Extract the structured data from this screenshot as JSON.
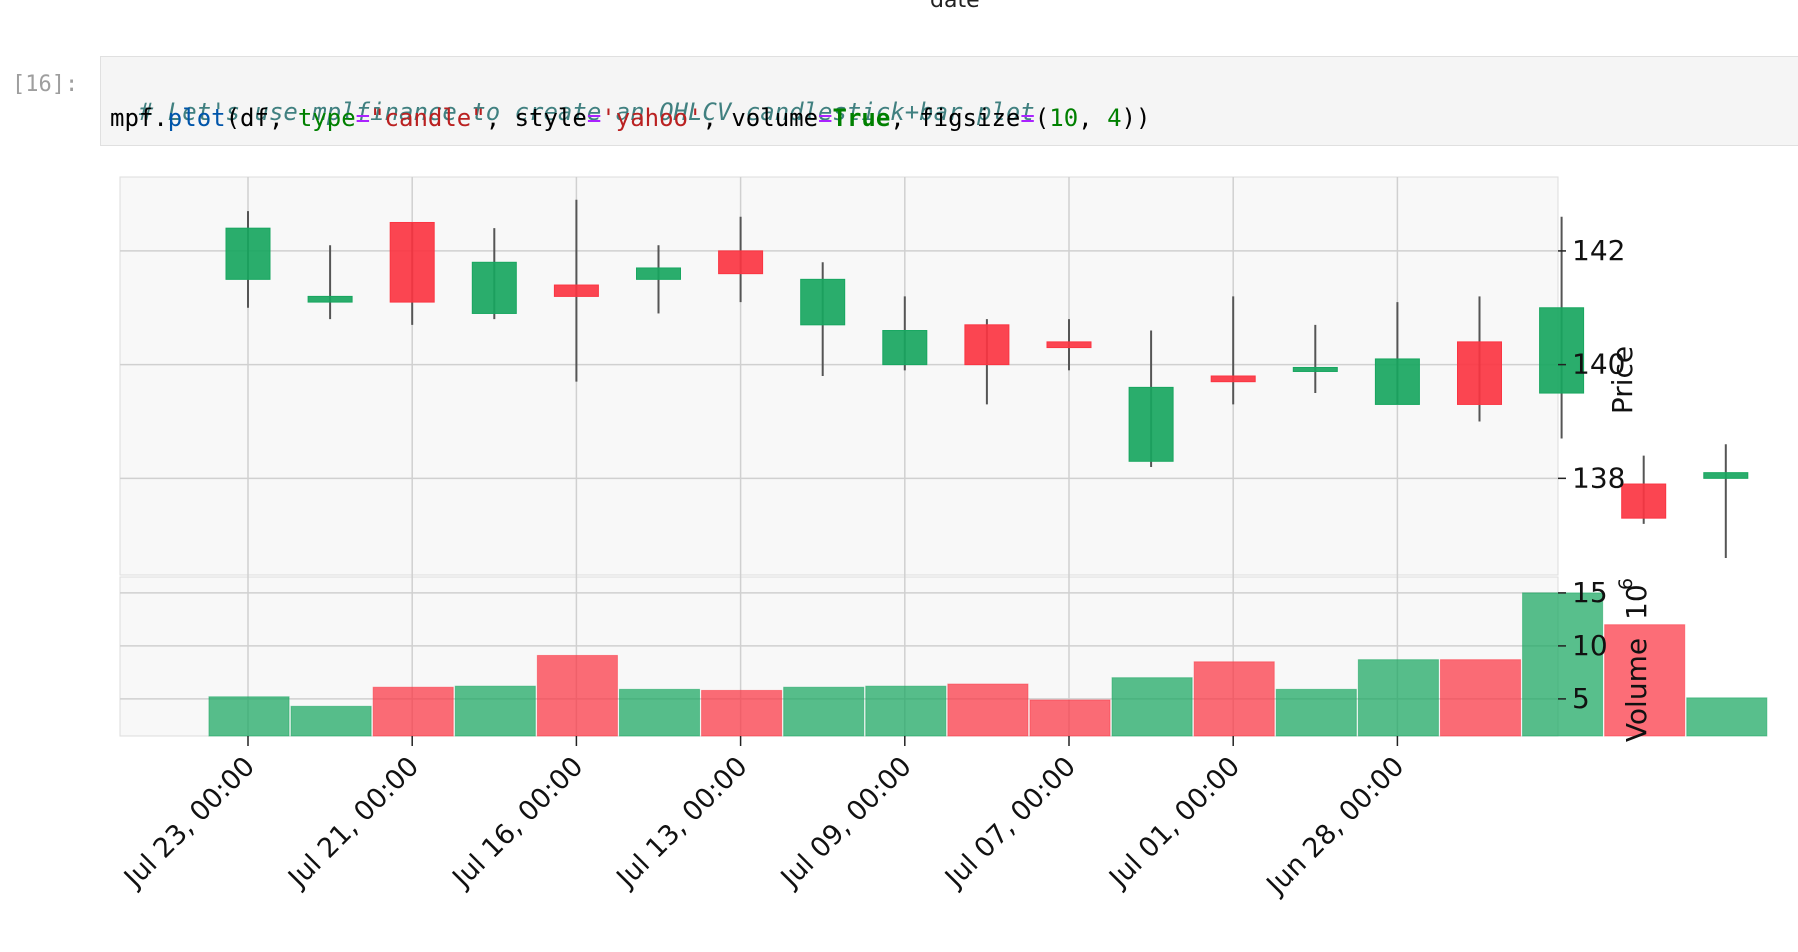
{
  "top_label": "date",
  "cell": {
    "prompt": "[16]:",
    "line1_comment": "# Let's use mplfinance to create an OHLCV candlestick+bar plot",
    "line2": {
      "t1": "mpf.",
      "fn": "plot",
      "t2": "(df, ",
      "k1": "type",
      "eq1": "=",
      "s1": "\"candle\"",
      "t3": ", style",
      "eq2": "=",
      "s2": "'yahoo'",
      "t4": ", volume",
      "eq3": "=",
      "b1": "True",
      "t5": ", figsize",
      "eq4": "=",
      "t6": "(",
      "n1": "10",
      "t7": ", ",
      "n2": "4",
      "t8": "))"
    }
  },
  "chart_data": {
    "type": "candlestick",
    "ylabel": "Price",
    "volume_label": "Volume",
    "volume_exponent": "10",
    "volume_exponent_power": "6",
    "price_ticks": [
      "142",
      "140",
      "138"
    ],
    "price_tick_values": [
      142,
      140,
      138
    ],
    "price_ylim": [
      136.3,
      143.3
    ],
    "volume_ticks": [
      "15",
      "10",
      "5"
    ],
    "volume_tick_values": [
      15,
      10,
      5
    ],
    "volume_ylim": [
      1.5,
      16.5
    ],
    "x_tick_labels": [
      "Jul 23, 00:00",
      "Jul 21, 00:00",
      "Jul 16, 00:00",
      "Jul 13, 00:00",
      "Jul 09, 00:00",
      "Jul 07, 00:00",
      "Jul 01, 00:00",
      "Jun 28, 00:00"
    ],
    "x_tick_index": [
      0,
      2,
      4,
      6,
      8,
      10,
      12,
      14
    ],
    "colors": {
      "up": "#18a660",
      "down": "#fb3542",
      "wick": "#555555",
      "grid": "#d0d0d0",
      "panel": "#f8f8f8"
    },
    "candles": [
      {
        "open": 141.5,
        "high": 142.7,
        "low": 141.0,
        "close": 142.4,
        "volume": 5.2
      },
      {
        "open": 141.1,
        "high": 142.1,
        "low": 140.8,
        "close": 141.2,
        "volume": 4.3
      },
      {
        "open": 142.5,
        "high": 142.5,
        "low": 140.7,
        "close": 141.1,
        "volume": 6.1
      },
      {
        "open": 140.9,
        "high": 142.4,
        "low": 140.8,
        "close": 141.8,
        "volume": 6.2
      },
      {
        "open": 141.4,
        "high": 142.9,
        "low": 139.7,
        "close": 141.2,
        "volume": 9.1
      },
      {
        "open": 141.5,
        "high": 142.1,
        "low": 140.9,
        "close": 141.7,
        "volume": 5.9
      },
      {
        "open": 142.0,
        "high": 142.6,
        "low": 141.1,
        "close": 141.6,
        "volume": 5.8
      },
      {
        "open": 140.7,
        "high": 141.8,
        "low": 139.8,
        "close": 141.5,
        "volume": 6.1
      },
      {
        "open": 140.0,
        "high": 141.2,
        "low": 139.9,
        "close": 140.6,
        "volume": 6.2
      },
      {
        "open": 140.7,
        "high": 140.8,
        "low": 139.3,
        "close": 140.0,
        "volume": 6.4
      },
      {
        "open": 140.4,
        "high": 140.8,
        "low": 139.9,
        "close": 140.3,
        "volume": 4.9
      },
      {
        "open": 138.3,
        "high": 140.6,
        "low": 138.2,
        "close": 139.6,
        "volume": 7.0
      },
      {
        "open": 139.8,
        "high": 141.2,
        "low": 139.3,
        "close": 139.7,
        "volume": 8.5
      },
      {
        "open": 139.9,
        "high": 140.7,
        "low": 139.5,
        "close": 139.95,
        "volume": 5.9
      },
      {
        "open": 139.3,
        "high": 141.1,
        "low": 139.3,
        "close": 140.1,
        "volume": 8.7
      },
      {
        "open": 140.4,
        "high": 141.2,
        "low": 139.0,
        "close": 139.3,
        "volume": 8.7
      },
      {
        "open": 139.5,
        "high": 142.6,
        "low": 138.7,
        "close": 141.0,
        "volume": 15.0
      },
      {
        "open": 137.9,
        "high": 138.4,
        "low": 137.2,
        "close": 137.3,
        "volume": 12.0
      },
      {
        "open": 138.0,
        "high": 138.6,
        "low": 136.6,
        "close": 138.1,
        "volume": 5.1
      }
    ]
  }
}
